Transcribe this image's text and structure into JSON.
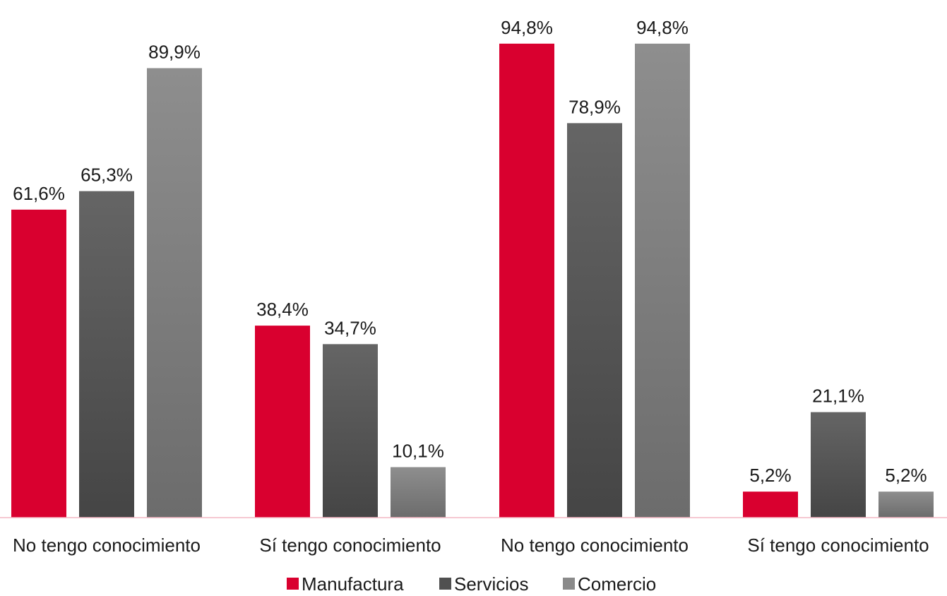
{
  "chart_data": {
    "type": "bar",
    "categories": [
      "No tengo conocimiento",
      "Sí tengo conocimiento",
      "No tengo conocimiento",
      "Sí tengo conocimiento"
    ],
    "series": [
      {
        "name": "Manufactura",
        "color": "#d9002f",
        "values": [
          61.6,
          38.4,
          94.8,
          5.2
        ],
        "labels": [
          "61,6%",
          "38,4%",
          "94,8%",
          "5,2%"
        ]
      },
      {
        "name": "Servicios",
        "color": "#585858",
        "values": [
          65.3,
          34.7,
          78.9,
          21.1
        ],
        "labels": [
          "65,3%",
          "34,7%",
          "78,9%",
          "21,1%"
        ]
      },
      {
        "name": "Comercio",
        "color": "#8a8a8a",
        "values": [
          89.9,
          10.1,
          94.8,
          5.2
        ],
        "labels": [
          "89,9%",
          "10,1%",
          "94,8%",
          "5,2%"
        ]
      }
    ],
    "ylim": [
      0,
      100
    ],
    "grid": false,
    "legend": "bottom-center",
    "axis_color": "#f4b7c3"
  }
}
